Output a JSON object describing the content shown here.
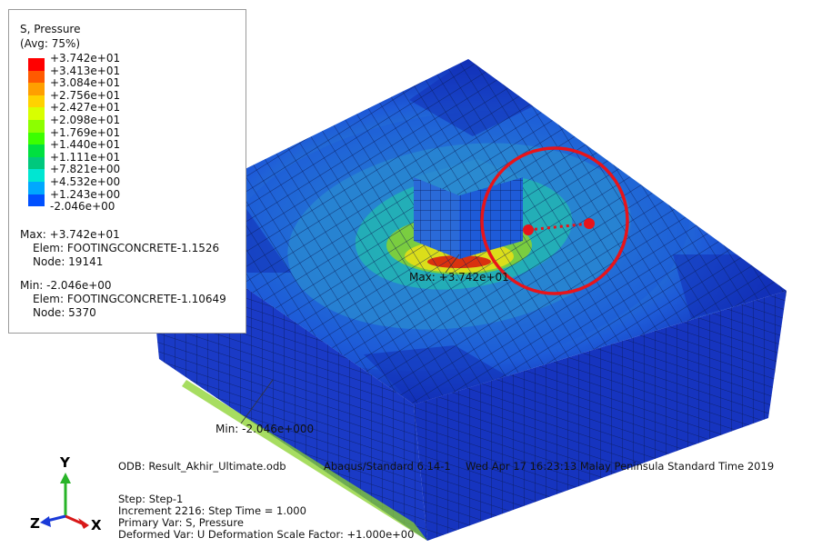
{
  "legend": {
    "title_line1": "S, Pressure",
    "title_line2": "(Avg: 75%)",
    "ticks": [
      "+3.742e+01",
      "+3.413e+01",
      "+3.084e+01",
      "+2.756e+01",
      "+2.427e+01",
      "+2.098e+01",
      "+1.769e+01",
      "+1.440e+01",
      "+1.111e+01",
      "+7.821e+00",
      "+4.532e+00",
      "+1.243e+00",
      "-2.046e+00"
    ],
    "colors": [
      "#ff0000",
      "#ff5a00",
      "#ff9f00",
      "#ffd200",
      "#d8ff00",
      "#8cff00",
      "#3cff00",
      "#00e040",
      "#00c87d",
      "#00e6d2",
      "#00a8ff",
      "#0050ff",
      "#0000ff"
    ],
    "max_label": "Max: +3.742e+01",
    "max_elem": "Elem: FOOTINGCONCRETE-1.1526",
    "max_node": "Node: 19141",
    "min_label": "Min: -2.046e+00",
    "min_elem": "Elem: FOOTINGCONCRETE-1.10649",
    "min_node": "Node: 5370"
  },
  "model": {
    "max_annotation": "Max: +3.742e+01",
    "min_annotation": "Min: -2.046e+000",
    "colors": {
      "dark_blue": "#1230b8",
      "mid_blue": "#1e5bd8",
      "light_blue": "#2a8ad0",
      "cyan": "#23b8b0",
      "green": "#8ad22c",
      "yellow": "#e6e016",
      "red": "#d8140e"
    }
  },
  "info": {
    "odb": "ODB: Result_Akhir_Ultimate.odb",
    "version": "Abaqus/Standard 6.14-1",
    "date": "Wed Apr 17 16:23:13 Malay Peninsula Standard Time 2019",
    "step": "Step: Step-1",
    "increment": "Increment  2216: Step Time =    1.000",
    "primary": "Primary Var: S, Pressure",
    "deformed": "Deformed Var: U   Deformation Scale Factor: +1.000e+00"
  },
  "triad": {
    "y": "Y",
    "x": "X",
    "z": "Z"
  }
}
